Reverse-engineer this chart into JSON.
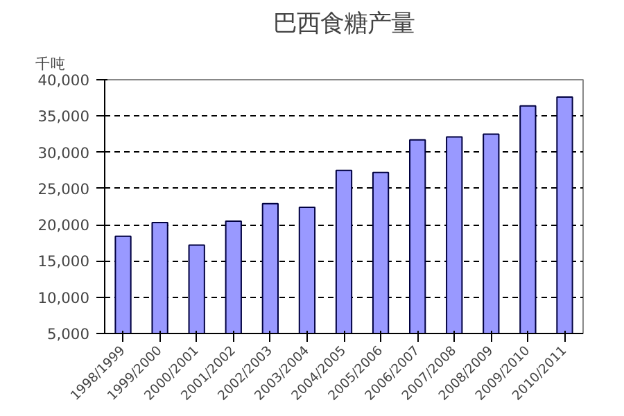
{
  "chart_data": {
    "type": "bar",
    "title": "巴西食糖产量",
    "ylabel": "千吨",
    "categories": [
      "1998/1999",
      "1999/2000",
      "2000/2001",
      "2001/2002",
      "2002/2003",
      "2003/2004",
      "2004/2005",
      "2005/2006",
      "2006/2007",
      "2007/2008",
      "2008/2009",
      "2009/2010",
      "2010/2011"
    ],
    "values": [
      18400,
      20300,
      17200,
      20500,
      22900,
      22400,
      27500,
      27200,
      31700,
      32100,
      32500,
      36400,
      37600
    ],
    "color": "#9999ff",
    "ylim": [
      5000,
      40000
    ],
    "yticks": [
      {
        "value": 5000,
        "label": "5,000"
      },
      {
        "value": 10000,
        "label": "10,000"
      },
      {
        "value": 15000,
        "label": "15,000"
      },
      {
        "value": 20000,
        "label": "20,000"
      },
      {
        "value": 25000,
        "label": "25,000"
      },
      {
        "value": 30000,
        "label": "30,000"
      },
      {
        "value": 35000,
        "label": "35,000"
      },
      {
        "value": 40000,
        "label": "40,000"
      }
    ],
    "grid": "y",
    "line_style": "dashed"
  }
}
